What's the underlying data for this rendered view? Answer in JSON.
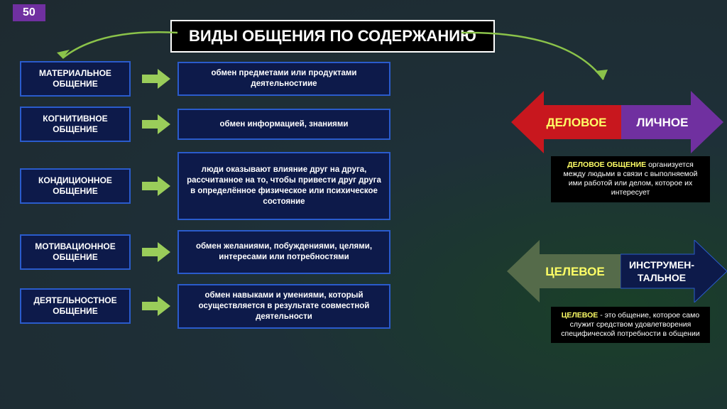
{
  "slide_number": "50",
  "title": "ВИДЫ ОБЩЕНИЯ  ПО СОДЕРЖАНИЮ",
  "colors": {
    "bg_gradient_inner": "#1a4028",
    "bg_gradient_outer": "#1e2a30",
    "box_fill": "#0d1a4a",
    "box_border": "#2a5bcc",
    "slide_num_bg": "#7030a0",
    "small_arrow": "#9acd5a",
    "curve_arrow": "#8bc34a",
    "highlight": "#ffff66",
    "arrow_red": "#c8171e",
    "arrow_purple": "#7030a0",
    "arrow_olive": "#556b4a",
    "arrow_navy": "#0d1a4a"
  },
  "rows": [
    {
      "label": "МАТЕРИАЛЬНОЕ ОБЩЕНИЕ",
      "desc": "обмен предметами или продуктами деятельностиие",
      "h": 44
    },
    {
      "label": "КОГНИТИВНОЕ ОБЩЕНИЕ",
      "desc": "обмен информацией, знаниями",
      "h": 44
    },
    {
      "label": "КОНДИЦИОННОЕ ОБЩЕНИЕ",
      "desc": "люди оказывают влияние друг на друга, рассчитанное на то, чтобы привести друг друга в определённое физическое или психическое состояние",
      "h": 96
    },
    {
      "label": "МОТИВАЦИОННОЕ ОБЩЕНИЕ",
      "desc": "обмен желаниями, побуждениями, целями, интересами или потребностями",
      "h": 62
    },
    {
      "label": "ДЕЯТЕЛЬНОСТНОЕ ОБЩЕНИЕ",
      "desc": "обмен навыками и умениями, который осуществляется в результате совместной деятельности",
      "h": 62
    }
  ],
  "pair1": {
    "left_label": "ДЕЛОВОЕ",
    "right_label": "ЛИЧНОЕ",
    "caption_hl": "ДЕЛОВОЕ ОБЩЕНИЕ",
    "caption_rest": "организуется между людьми в связи с выполняемой ими работой или делом, которое их интересует"
  },
  "pair2": {
    "left_label": "ЦЕЛЕВОЕ",
    "right_label": "ИНСТРУМЕН-ТАЛЬНОЕ",
    "caption_hl": "ЦЕЛЕВОЕ",
    "caption_rest": " - это общение, которое само служит средством удовлетворения специфической потребности в общении"
  }
}
